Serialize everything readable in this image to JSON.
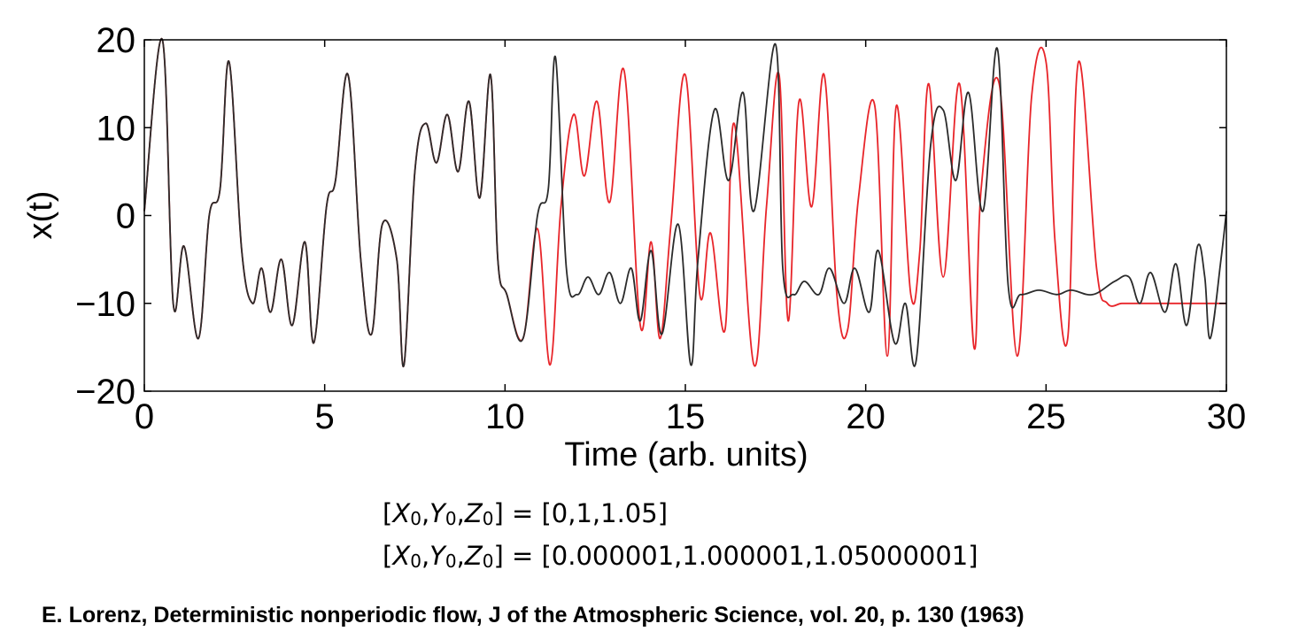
{
  "chart_data": {
    "type": "line",
    "xlabel": "Time (arb. units)",
    "ylabel": "x(t)",
    "xlim": [
      0,
      30
    ],
    "ylim": [
      -20,
      20
    ],
    "xticks": [
      0,
      5,
      10,
      15,
      20,
      25,
      30
    ],
    "yticks": [
      20,
      10,
      0,
      -10,
      -20
    ],
    "xtick_labels": [
      "0",
      "5",
      "10",
      "15",
      "20",
      "25",
      "30"
    ],
    "ytick_labels": [
      "20",
      "10",
      "0",
      "−10",
      "−20"
    ],
    "grid": false,
    "series": [
      {
        "color": "#e8252a",
        "x": [
          0,
          0.5,
          0.8,
          1.1,
          1.5,
          1.8,
          2.1,
          2.35,
          2.7,
          3.0,
          3.25,
          3.5,
          3.8,
          4.1,
          4.45,
          4.7,
          5.05,
          5.3,
          5.65,
          6.0,
          6.3,
          6.6,
          7.0,
          7.2,
          7.5,
          7.8,
          8.1,
          8.4,
          8.7,
          9.0,
          9.3,
          9.6,
          9.8,
          10.05,
          10.5,
          10.9,
          11.25,
          11.55,
          11.9,
          12.2,
          12.55,
          12.9,
          13.3,
          13.75,
          14.05,
          14.3,
          14.6,
          15.0,
          15.4,
          15.7,
          16.1,
          16.35,
          16.9,
          17.25,
          17.6,
          17.85,
          18.15,
          18.5,
          18.85,
          19.2,
          19.5,
          19.8,
          20.25,
          20.6,
          20.85,
          21.25,
          21.5,
          21.75,
          22.15,
          22.6,
          23.0,
          23.2,
          23.7,
          24.2,
          24.6,
          25.0,
          25.25,
          25.6,
          25.9,
          26.4,
          26.7,
          27.1,
          27.45,
          27.8,
          28.05,
          28.4,
          28.95,
          29.2,
          29.55,
          29.75,
          30.0
        ],
        "y": [
          0.5,
          20,
          -10,
          -3.5,
          -14,
          0,
          3,
          17.5,
          -4,
          -10,
          -6,
          -11,
          -5,
          -12.5,
          -3,
          -14.5,
          1,
          4,
          16,
          -5,
          -13.5,
          -1,
          -5,
          -17,
          5,
          10.5,
          6,
          11.5,
          5,
          13,
          2,
          16,
          -5,
          -9,
          -14,
          -1.5,
          -17,
          1,
          11.5,
          4.5,
          13,
          1.5,
          16.5,
          -12.5,
          -3,
          -14,
          -1,
          16,
          -9,
          -2,
          -13,
          10.5,
          -17,
          1,
          16,
          -12,
          13,
          1,
          16,
          -9,
          -13,
          2,
          12.5,
          -16,
          12.5,
          -9,
          -4,
          15,
          -7,
          15,
          -15,
          3,
          15,
          -16,
          13.5,
          17.5,
          -3,
          -14,
          17.5,
          -6,
          -10,
          -10,
          -10,
          -10,
          -10,
          -10,
          -10,
          -10,
          -10,
          -10,
          -10
        ]
      },
      {
        "color": "#2b2b2b",
        "x": [
          0,
          0.5,
          0.8,
          1.1,
          1.5,
          1.8,
          2.1,
          2.35,
          2.7,
          3.0,
          3.25,
          3.5,
          3.8,
          4.1,
          4.45,
          4.7,
          5.05,
          5.3,
          5.65,
          6.0,
          6.3,
          6.6,
          7.0,
          7.2,
          7.5,
          7.8,
          8.1,
          8.4,
          8.7,
          9.0,
          9.3,
          9.6,
          9.8,
          10.05,
          10.5,
          10.9,
          11.2,
          11.4,
          11.7,
          12.0,
          12.3,
          12.6,
          12.9,
          13.2,
          13.5,
          13.75,
          14.05,
          14.35,
          14.8,
          15.15,
          15.35,
          15.8,
          16.2,
          16.6,
          16.9,
          17.5,
          17.7,
          18.0,
          18.3,
          18.7,
          19.0,
          19.4,
          19.7,
          20.1,
          20.35,
          20.8,
          21.1,
          21.4,
          21.8,
          22.15,
          22.5,
          22.85,
          23.25,
          23.65,
          23.95,
          24.3,
          24.8,
          25.3,
          25.7,
          26.3,
          26.9,
          27.3,
          27.6,
          27.9,
          28.3,
          28.6,
          28.9,
          29.2,
          29.4,
          29.55,
          29.85,
          30.0
        ],
        "y": [
          0.5,
          20,
          -10,
          -3.5,
          -14,
          0,
          3,
          17.5,
          -4,
          -10,
          -6,
          -11,
          -5,
          -12.5,
          -3,
          -14.5,
          1,
          4,
          16,
          -5,
          -13.5,
          -1,
          -5,
          -17,
          5,
          10.5,
          6,
          11.5,
          5,
          13,
          2,
          16,
          -5,
          -9,
          -14,
          0,
          3,
          18,
          -6,
          -9,
          -7,
          -9,
          -6.5,
          -10,
          -6,
          -12,
          -4,
          -13.5,
          -1,
          -17,
          -5,
          12,
          4,
          14,
          0.5,
          19.5,
          -6,
          -9,
          -7.5,
          -9,
          -6,
          -10,
          -6,
          -11,
          -4,
          -14.5,
          -10,
          -16.5,
          8,
          12,
          4,
          14,
          0.5,
          19,
          -8,
          -9,
          -8.5,
          -9,
          -8.5,
          -9,
          -7.5,
          -7,
          -10,
          -6.5,
          -11,
          -5.5,
          -12.5,
          -3.5,
          -7,
          -14,
          -5,
          0.5
        ]
      }
    ]
  },
  "annotations": {
    "ic_line_1": {
      "open": "[",
      "x": "X",
      "y": "Y",
      "z": "Z",
      "sub": "0",
      "comma": ",",
      "rest": "] = [0,1,1.05]"
    },
    "ic_line_2": {
      "open": "[",
      "x": "X",
      "y": "Y",
      "z": "Z",
      "sub": "0",
      "comma": ",",
      "rest": "] = [0.000001,1.000001,1.05000001]"
    }
  },
  "citation": "E. Lorenz, Deterministic nonperiodic flow, J of the Atmospheric Science, vol. 20, p. 130 (1963)"
}
